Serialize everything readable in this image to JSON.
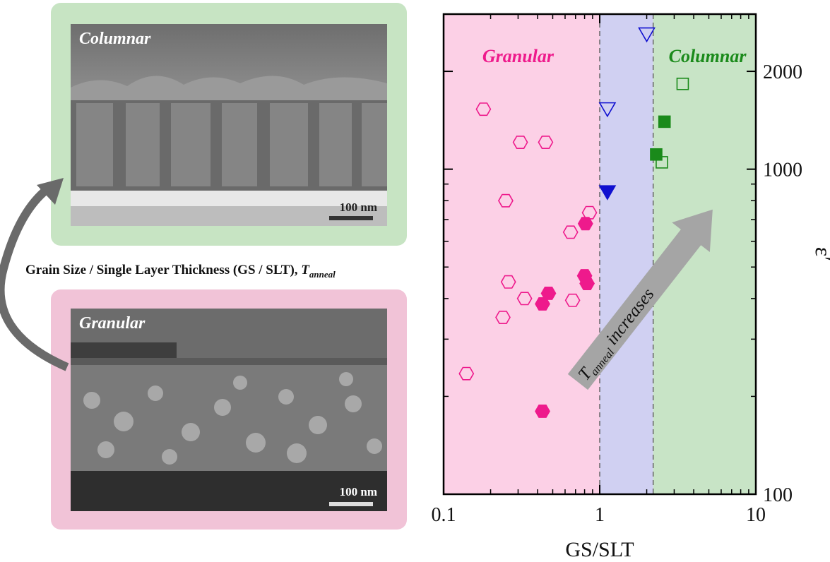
{
  "figure": {
    "middle_label": {
      "text": "Grain Size / Single Layer Thickness (GS / SLT), ",
      "var": "T",
      "sub": "anneal"
    },
    "columnar_image": {
      "label": "Columnar",
      "scale": "100 nm"
    },
    "granular_image": {
      "label": "Granular",
      "scale": "100 nm"
    }
  },
  "colors": {
    "granular": "#ee1a8c",
    "intermediate": "#1010d0",
    "columnar": "#1a8a1a",
    "region_granular": "#fcd0e6",
    "region_intermediate": "#d0d0f2",
    "region_columnar": "#c8e4c6",
    "arrow": "#a5a5a5"
  },
  "chart_data": {
    "type": "scatter",
    "xlabel": "GS/SLT",
    "ylabel": "ε′",
    "x_scale": "log",
    "y_scale": "log",
    "xlim": [
      0.1,
      10
    ],
    "ylim": [
      100,
      3000
    ],
    "x_ticks": [
      0.1,
      1,
      10
    ],
    "x_tick_labels": [
      "0.1",
      "1",
      "10"
    ],
    "y_ticks": [
      100,
      1000,
      2000
    ],
    "y_tick_labels": [
      "100",
      "1000",
      "2000"
    ],
    "boundaries": [
      1.0,
      2.2
    ],
    "regions": [
      {
        "label": "Granular",
        "from": 0.1,
        "to": 1.0
      },
      {
        "label": "",
        "from": 1.0,
        "to": 2.2
      },
      {
        "label": "Columnar",
        "from": 2.2,
        "to": 10
      }
    ],
    "arrow_annotation": {
      "var": "T",
      "sub": "anneal",
      "text": "increases"
    },
    "series": [
      {
        "marker": "hexagon",
        "filled": false,
        "color": "granular",
        "points": [
          [
            0.18,
            1530
          ],
          [
            0.31,
            1210
          ],
          [
            0.45,
            1210
          ],
          [
            0.25,
            800
          ],
          [
            0.86,
            735
          ],
          [
            0.65,
            640
          ],
          [
            0.26,
            450
          ],
          [
            0.33,
            400
          ],
          [
            0.24,
            350
          ],
          [
            0.67,
            395
          ],
          [
            0.14,
            235
          ]
        ]
      },
      {
        "marker": "hexagon",
        "filled": true,
        "color": "granular",
        "points": [
          [
            0.81,
            680
          ],
          [
            0.8,
            470
          ],
          [
            0.83,
            445
          ],
          [
            0.47,
            415
          ],
          [
            0.43,
            385
          ],
          [
            0.43,
            180
          ]
        ]
      },
      {
        "marker": "triangle-down",
        "filled": false,
        "color": "intermediate",
        "points": [
          [
            2.0,
            2600
          ],
          [
            1.12,
            1530
          ]
        ]
      },
      {
        "marker": "triangle-down",
        "filled": true,
        "color": "intermediate",
        "points": [
          [
            1.12,
            850
          ]
        ]
      },
      {
        "marker": "square",
        "filled": false,
        "color": "columnar",
        "points": [
          [
            3.4,
            1830
          ],
          [
            2.5,
            1050
          ]
        ]
      },
      {
        "marker": "square",
        "filled": true,
        "color": "columnar",
        "points": [
          [
            2.6,
            1400
          ],
          [
            2.3,
            1110
          ]
        ]
      }
    ]
  }
}
